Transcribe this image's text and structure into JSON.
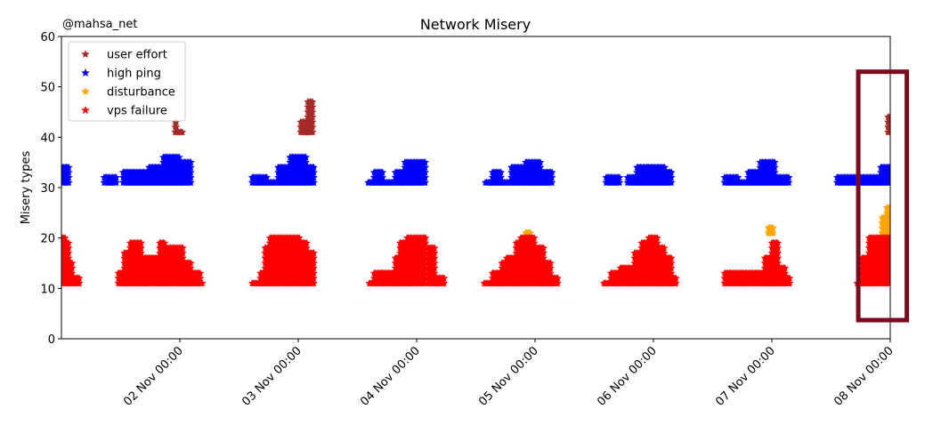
{
  "watermark": "@mahsa_net",
  "chart_data": {
    "type": "scatter",
    "title": "Network Misery",
    "xlabel": "",
    "ylabel": "Misery types",
    "ylim": [
      0,
      60
    ],
    "yticks": [
      0,
      10,
      20,
      30,
      40,
      50,
      60
    ],
    "xlim_days": [
      1.0,
      8.0
    ],
    "xticks": [
      {
        "day": 2,
        "label": "02 Nov 00:00"
      },
      {
        "day": 3,
        "label": "03 Nov 00:00"
      },
      {
        "day": 4,
        "label": "04 Nov 00:00"
      },
      {
        "day": 5,
        "label": "05 Nov 00:00"
      },
      {
        "day": 6,
        "label": "06 Nov 00:00"
      },
      {
        "day": 7,
        "label": "07 Nov 00:00"
      },
      {
        "day": 8,
        "label": "08 Nov 00:00"
      }
    ],
    "legend_position": "top-left",
    "marker": "star",
    "highlight": {
      "x_range_days": [
        7.73,
        8.14
      ],
      "y_range": [
        3.7,
        53
      ],
      "color": "#7b0a1e"
    },
    "series": [
      {
        "name": "user effort",
        "color": "#a52a2a",
        "base": 41,
        "profile": [
          [
            1.96,
            1.98,
            43
          ],
          [
            1.98,
            2.03,
            41
          ],
          [
            3.02,
            3.08,
            43
          ],
          [
            3.08,
            3.13,
            47
          ],
          [
            7.98,
            8.03,
            44
          ]
        ]
      },
      {
        "name": "high ping",
        "color": "#0000ff",
        "base": 31,
        "profile": [
          [
            1.0,
            1.07,
            34
          ],
          [
            1.36,
            1.47,
            32
          ],
          [
            1.52,
            1.74,
            33
          ],
          [
            1.74,
            1.86,
            34
          ],
          [
            1.86,
            2.0,
            36
          ],
          [
            2.0,
            2.1,
            35
          ],
          [
            2.61,
            2.74,
            32
          ],
          [
            2.74,
            2.83,
            31
          ],
          [
            2.83,
            2.93,
            34
          ],
          [
            2.93,
            3.07,
            36
          ],
          [
            3.07,
            3.14,
            34
          ],
          [
            3.59,
            3.64,
            31
          ],
          [
            3.64,
            3.72,
            33
          ],
          [
            3.72,
            3.82,
            31
          ],
          [
            3.82,
            3.9,
            33
          ],
          [
            3.9,
            4.0,
            35
          ],
          [
            4.0,
            4.08,
            35
          ],
          [
            4.58,
            4.64,
            31
          ],
          [
            4.64,
            4.72,
            33
          ],
          [
            4.72,
            4.8,
            31
          ],
          [
            4.8,
            4.92,
            34
          ],
          [
            4.92,
            5.05,
            35
          ],
          [
            5.05,
            5.15,
            33
          ],
          [
            5.6,
            5.72,
            32
          ],
          [
            5.78,
            5.86,
            32
          ],
          [
            5.86,
            5.96,
            34
          ],
          [
            5.96,
            6.1,
            34
          ],
          [
            6.1,
            6.16,
            33
          ],
          [
            6.6,
            6.72,
            32
          ],
          [
            6.72,
            6.8,
            31
          ],
          [
            6.8,
            6.9,
            33
          ],
          [
            6.9,
            7.03,
            35
          ],
          [
            7.03,
            7.15,
            32
          ],
          [
            7.55,
            7.83,
            32
          ],
          [
            7.83,
            7.92,
            32
          ],
          [
            7.92,
            8.02,
            34
          ]
        ]
      },
      {
        "name": "disturbance",
        "color": "#ffa500",
        "base": 21,
        "profile": [
          [
            4.92,
            4.97,
            21
          ],
          [
            6.97,
            7.02,
            22
          ],
          [
            7.93,
            7.97,
            24
          ],
          [
            7.97,
            8.0,
            26
          ]
        ]
      },
      {
        "name": "vps failure",
        "color": "#ff0000",
        "base": 11,
        "profile": [
          [
            1.0,
            1.04,
            20
          ],
          [
            1.04,
            1.07,
            19
          ],
          [
            1.07,
            1.1,
            15
          ],
          [
            1.1,
            1.16,
            12
          ],
          [
            1.48,
            1.53,
            13
          ],
          [
            1.53,
            1.58,
            17
          ],
          [
            1.58,
            1.68,
            19
          ],
          [
            1.68,
            1.73,
            16
          ],
          [
            1.73,
            1.83,
            16
          ],
          [
            1.83,
            1.88,
            19
          ],
          [
            1.88,
            2.03,
            18
          ],
          [
            2.03,
            2.1,
            15
          ],
          [
            2.1,
            2.18,
            13
          ],
          [
            2.18,
            2.2,
            11
          ],
          [
            2.61,
            2.68,
            11
          ],
          [
            2.68,
            2.72,
            13
          ],
          [
            2.72,
            2.76,
            18
          ],
          [
            2.76,
            3.02,
            20
          ],
          [
            3.02,
            3.08,
            19
          ],
          [
            3.08,
            3.14,
            17
          ],
          [
            3.6,
            3.64,
            11
          ],
          [
            3.64,
            3.72,
            13
          ],
          [
            3.72,
            3.82,
            13
          ],
          [
            3.82,
            3.86,
            16
          ],
          [
            3.86,
            3.92,
            19
          ],
          [
            3.92,
            4.08,
            20
          ],
          [
            4.1,
            4.16,
            18
          ],
          [
            4.16,
            4.24,
            12
          ],
          [
            4.57,
            4.64,
            11
          ],
          [
            4.64,
            4.72,
            13
          ],
          [
            4.72,
            4.76,
            15
          ],
          [
            4.76,
            4.84,
            16
          ],
          [
            4.84,
            4.88,
            19
          ],
          [
            4.88,
            5.0,
            20
          ],
          [
            5.0,
            5.08,
            18
          ],
          [
            5.08,
            5.14,
            15
          ],
          [
            5.14,
            5.2,
            12
          ],
          [
            5.58,
            5.64,
            11
          ],
          [
            5.64,
            5.72,
            13
          ],
          [
            5.72,
            5.84,
            14
          ],
          [
            5.84,
            5.9,
            17
          ],
          [
            5.9,
            5.96,
            19
          ],
          [
            5.96,
            6.04,
            20
          ],
          [
            6.04,
            6.1,
            18
          ],
          [
            6.1,
            6.16,
            16
          ],
          [
            6.16,
            6.2,
            12
          ],
          [
            6.6,
            6.86,
            13
          ],
          [
            6.86,
            6.94,
            13
          ],
          [
            6.94,
            7.0,
            16
          ],
          [
            7.0,
            7.06,
            19
          ],
          [
            7.06,
            7.12,
            14
          ],
          [
            7.12,
            7.16,
            12
          ],
          [
            7.72,
            7.76,
            11
          ],
          [
            7.76,
            7.82,
            16
          ],
          [
            7.82,
            8.0,
            20
          ]
        ]
      }
    ]
  }
}
